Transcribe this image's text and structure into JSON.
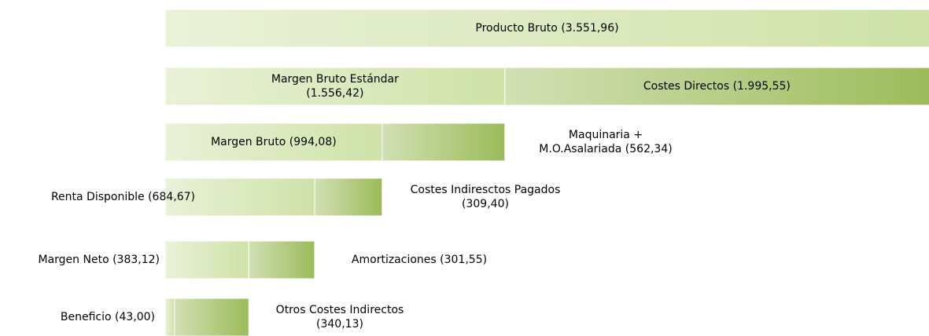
{
  "chart_data": {
    "type": "bar",
    "orientation": "horizontal",
    "stacked": true,
    "xlim": [
      0,
      3500
    ],
    "series": [
      {
        "color": "#cfe2a8",
        "values": [
          3551.96,
          1556.42,
          994.08,
          684.67,
          383.12,
          43.0
        ],
        "value_labels": [
          [
            "Producto Bruto (3.551,96)"
          ],
          [
            "Margen Bruto Estándar",
            "(1.556,42)"
          ],
          [
            "Margen Bruto (994,08)"
          ],
          [
            "Renta Disponible (684,67)"
          ],
          [
            "Margen Neto (383,12)"
          ],
          [
            "Beneficio (43,00)"
          ]
        ]
      },
      {
        "color": "#9bbb59",
        "values": [
          null,
          1995.55,
          562.34,
          309.4,
          301.55,
          340.13
        ],
        "value_labels": [
          null,
          [
            "Costes Directos (1.995,55)"
          ],
          [
            "Maquinaria +",
            "M.O.Asalariada (562,34)"
          ],
          [
            "Costes Indiresctos Pagados",
            "(309,40)"
          ],
          [
            "Amortizaciones (301,55)"
          ],
          [
            "Otros Costes Indirectos",
            "(340,13)"
          ]
        ]
      }
    ]
  }
}
